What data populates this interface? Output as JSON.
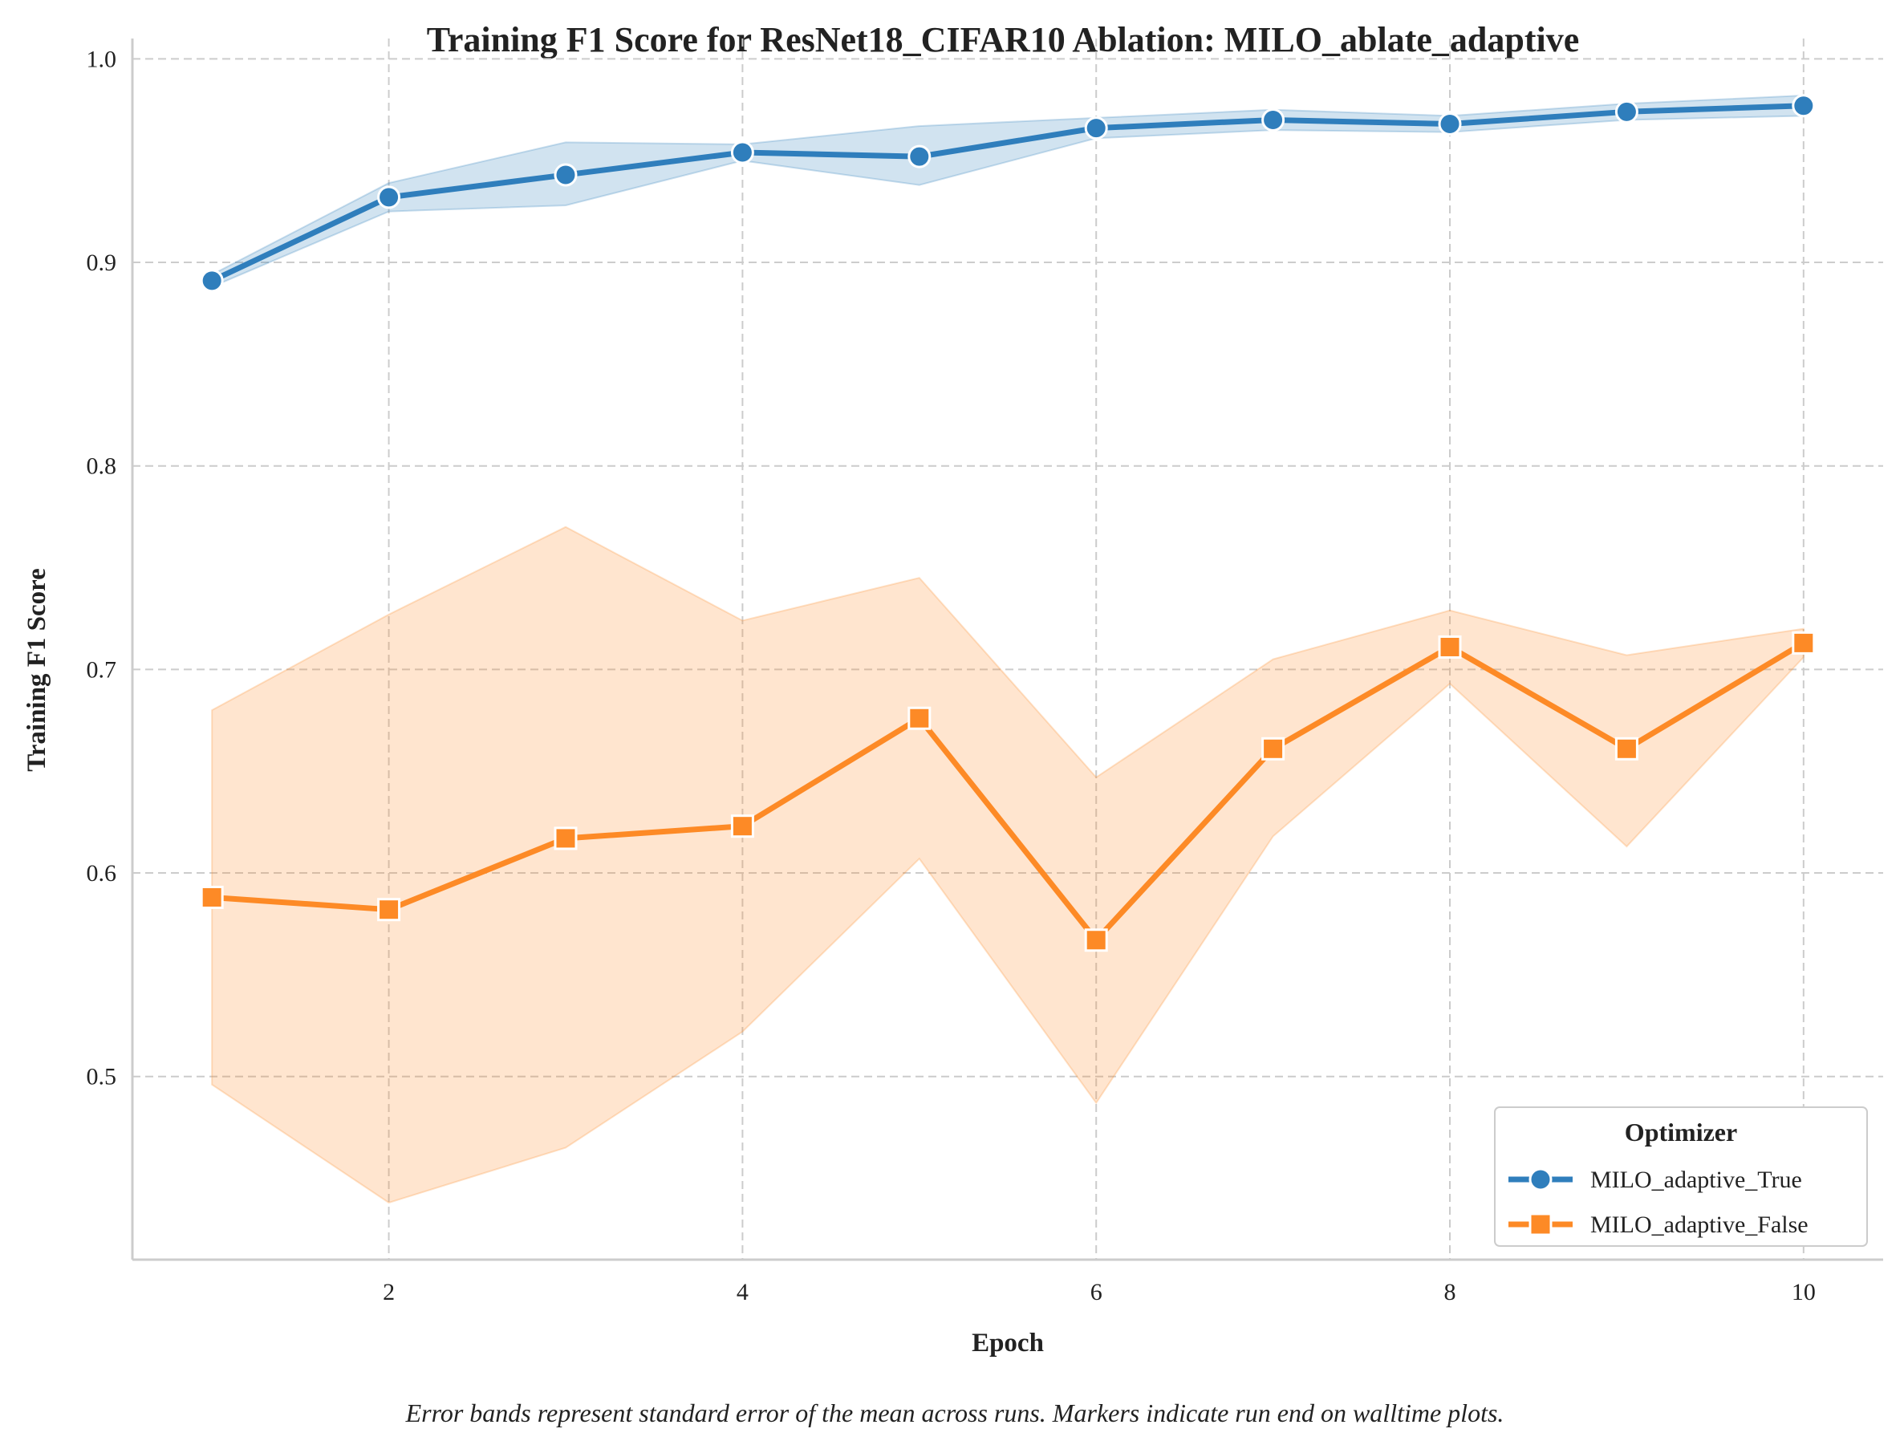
{
  "chart_data": {
    "type": "line",
    "title": "Training F1 Score for ResNet18_CIFAR10 Ablation: MILO_ablate_adaptive",
    "xlabel": "Epoch",
    "ylabel": "Training F1 Score",
    "xlim": [
      0.55,
      10.45
    ],
    "ylim": [
      0.41,
      1.01
    ],
    "xticks": [
      2,
      4,
      6,
      8,
      10
    ],
    "yticks": [
      0.5,
      0.6,
      0.7,
      0.8,
      0.9,
      1.0
    ],
    "ytick_labels": [
      "0.5",
      "0.6",
      "0.7",
      "0.8",
      "0.9",
      "1.0"
    ],
    "grid": true,
    "legend": {
      "title": "Optimizer",
      "position": "bottom-right"
    },
    "caption": "Error bands represent standard error of the mean across runs. Markers indicate run end on walltime plots.",
    "series": [
      {
        "name": "MILO_adaptive_True",
        "color": "#2f7ebc",
        "marker": "circle",
        "x": [
          1,
          2,
          3,
          4,
          5,
          6,
          7,
          8,
          9,
          10
        ],
        "y": [
          0.891,
          0.932,
          0.943,
          0.954,
          0.952,
          0.966,
          0.97,
          0.968,
          0.974,
          0.977
        ],
        "lower": [
          0.888,
          0.925,
          0.928,
          0.95,
          0.938,
          0.961,
          0.965,
          0.964,
          0.97,
          0.972
        ],
        "upper": [
          0.894,
          0.939,
          0.959,
          0.958,
          0.967,
          0.971,
          0.975,
          0.972,
          0.978,
          0.982
        ]
      },
      {
        "name": "MILO_adaptive_False",
        "color": "#fd8a26",
        "marker": "square",
        "x": [
          1,
          2,
          3,
          4,
          5,
          6,
          7,
          8,
          9,
          10
        ],
        "y": [
          0.588,
          0.582,
          0.617,
          0.623,
          0.676,
          0.567,
          0.661,
          0.711,
          0.661,
          0.713
        ],
        "lower": [
          0.496,
          0.438,
          0.465,
          0.522,
          0.607,
          0.487,
          0.618,
          0.693,
          0.613,
          0.706
        ],
        "upper": [
          0.68,
          0.727,
          0.77,
          0.724,
          0.745,
          0.647,
          0.705,
          0.729,
          0.707,
          0.72
        ]
      }
    ]
  }
}
